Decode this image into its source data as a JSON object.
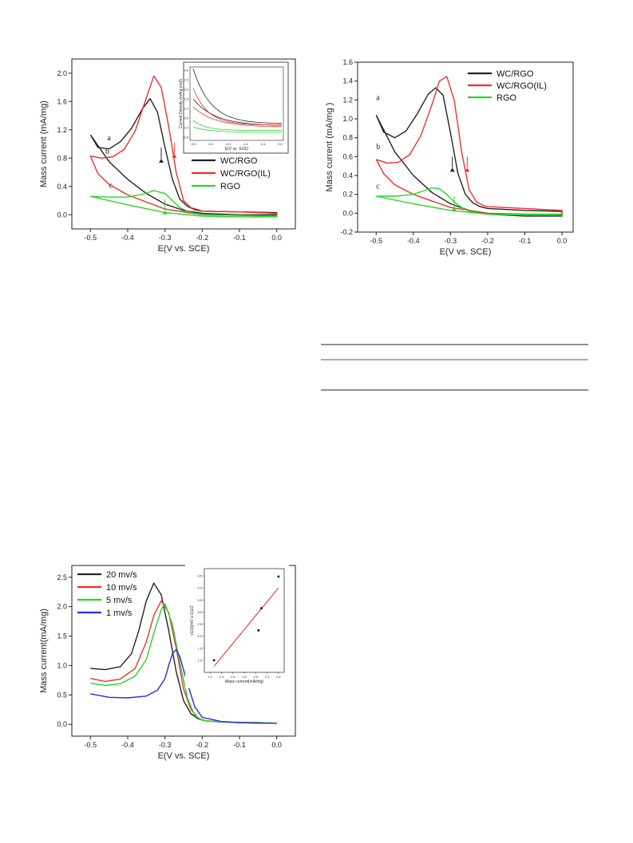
{
  "chart_data": [
    {
      "type": "line",
      "id": "fig1",
      "xlabel": "E(V vs. SCE)",
      "ylabel": "Mass current (mA/mg)",
      "xlim": [
        -0.55,
        0.05
      ],
      "ylim": [
        -0.2,
        2.2
      ],
      "xticks": [
        -0.5,
        -0.4,
        -0.3,
        -0.2,
        -0.1,
        0.0
      ],
      "xtick_labels": [
        "-0.5",
        "-0.4",
        "-0.3",
        "-0.2",
        "-0.1",
        "0.0"
      ],
      "yticks": [
        0.0,
        0.4,
        0.8,
        1.2,
        1.6,
        2.0
      ],
      "ytick_labels": [
        "0.0",
        "0.4",
        "0.8",
        "1.2",
        "1.6",
        "2.0"
      ],
      "legend_position": "right",
      "annotations": [
        "a",
        "b",
        "c"
      ],
      "series": [
        {
          "name": "WC/RGO",
          "color": "#222222",
          "x": [
            -0.5,
            -0.48,
            -0.45,
            -0.42,
            -0.39,
            -0.36,
            -0.34,
            -0.32,
            -0.3,
            -0.28,
            -0.26,
            -0.24,
            -0.22,
            -0.2,
            -0.1,
            0.0,
            0.0,
            -0.1,
            -0.2,
            -0.25,
            -0.3,
            -0.35,
            -0.4,
            -0.45,
            -0.5
          ],
          "y": [
            1.13,
            0.95,
            0.93,
            1.03,
            1.22,
            1.5,
            1.64,
            1.45,
            0.95,
            0.5,
            0.22,
            0.12,
            0.07,
            0.05,
            0.04,
            0.03,
            0.0,
            0.0,
            0.02,
            0.06,
            0.15,
            0.3,
            0.5,
            0.75,
            1.13
          ]
        },
        {
          "name": "WC/RGO(IL)",
          "color": "#e8322d",
          "x": [
            -0.5,
            -0.47,
            -0.44,
            -0.41,
            -0.38,
            -0.35,
            -0.33,
            -0.31,
            -0.29,
            -0.27,
            -0.25,
            -0.23,
            -0.21,
            -0.2,
            -0.1,
            0.0,
            0.0,
            -0.1,
            -0.2,
            -0.3,
            -0.4,
            -0.45,
            -0.48,
            -0.5
          ],
          "y": [
            0.83,
            0.8,
            0.82,
            0.92,
            1.18,
            1.65,
            1.96,
            1.8,
            1.25,
            0.6,
            0.2,
            0.1,
            0.07,
            0.05,
            0.04,
            0.02,
            -0.02,
            -0.01,
            0.0,
            0.08,
            0.28,
            0.43,
            0.58,
            0.83
          ]
        },
        {
          "name": "RGO",
          "color": "#2ad42a",
          "x": [
            -0.5,
            -0.45,
            -0.4,
            -0.36,
            -0.33,
            -0.3,
            -0.28,
            -0.26,
            -0.24,
            -0.22,
            -0.2,
            -0.1,
            0.0,
            0.0,
            -0.1,
            -0.2,
            -0.3,
            -0.4,
            -0.5
          ],
          "y": [
            0.26,
            0.25,
            0.25,
            0.29,
            0.34,
            0.3,
            0.2,
            0.1,
            0.05,
            0.02,
            0.0,
            -0.01,
            -0.02,
            -0.03,
            -0.03,
            -0.02,
            0.03,
            0.14,
            0.26
          ]
        }
      ],
      "inset": {
        "xlabel": "E(V vs. SCE)",
        "ylabel": "Current Density (mA/g cm2)",
        "xtick_labels": [
          "-0.5",
          "-0.4",
          "-0.3",
          "-0.2",
          "-0.1",
          "0.0"
        ],
        "ytick_labels": [
          "-0.5",
          "0.0",
          "0.5",
          "1.0",
          "1.5",
          "2.0",
          "2.5",
          "3.0"
        ]
      }
    },
    {
      "type": "line",
      "id": "fig2",
      "xlabel": "E(V vs. SCE)",
      "ylabel": "Mass current (mA/mg )",
      "xlim": [
        -0.55,
        0.03
      ],
      "ylim": [
        -0.2,
        1.6
      ],
      "xticks": [
        -0.5,
        -0.4,
        -0.3,
        -0.2,
        -0.1,
        0.0
      ],
      "xtick_labels": [
        "-0.5",
        "-0.4",
        "-0.3",
        "-0.2",
        "-0.1",
        "0.0"
      ],
      "yticks": [
        -0.2,
        0.0,
        0.2,
        0.4,
        0.6,
        0.8,
        1.0,
        1.2,
        1.4,
        1.6
      ],
      "ytick_labels": [
        "-0.2",
        "0.0",
        "0.2",
        "0.4",
        "0.6",
        "0.8",
        "1.0",
        "1.2",
        "1.4",
        "1.6"
      ],
      "legend_position": "top-right",
      "annotations": [
        "a",
        "b",
        "c"
      ],
      "series": [
        {
          "name": "WC/RGO",
          "color": "#222222",
          "x": [
            -0.5,
            -0.48,
            -0.45,
            -0.42,
            -0.39,
            -0.36,
            -0.34,
            -0.32,
            -0.3,
            -0.28,
            -0.26,
            -0.24,
            -0.22,
            -0.2,
            -0.1,
            0.0,
            0.0,
            -0.1,
            -0.2,
            -0.25,
            -0.3,
            -0.35,
            -0.4,
            -0.45,
            -0.5
          ],
          "y": [
            1.04,
            0.86,
            0.8,
            0.87,
            1.05,
            1.26,
            1.33,
            1.25,
            0.85,
            0.42,
            0.2,
            0.11,
            0.07,
            0.05,
            0.03,
            0.02,
            -0.03,
            -0.03,
            -0.01,
            0.03,
            0.1,
            0.22,
            0.4,
            0.65,
            1.04
          ]
        },
        {
          "name": "WC/RGO(IL)",
          "color": "#e8322d",
          "x": [
            -0.5,
            -0.47,
            -0.44,
            -0.41,
            -0.38,
            -0.35,
            -0.33,
            -0.31,
            -0.29,
            -0.27,
            -0.25,
            -0.23,
            -0.21,
            -0.2,
            -0.1,
            0.0,
            0.0,
            -0.1,
            -0.2,
            -0.3,
            -0.4,
            -0.45,
            -0.48,
            -0.5
          ],
          "y": [
            0.57,
            0.53,
            0.54,
            0.62,
            0.82,
            1.15,
            1.4,
            1.45,
            1.2,
            0.65,
            0.25,
            0.12,
            0.08,
            0.07,
            0.05,
            0.03,
            -0.02,
            -0.01,
            0.0,
            0.06,
            0.2,
            0.3,
            0.42,
            0.57
          ]
        },
        {
          "name": "RGO",
          "color": "#2ad42a",
          "x": [
            -0.5,
            -0.45,
            -0.4,
            -0.37,
            -0.35,
            -0.33,
            -0.31,
            -0.29,
            -0.27,
            -0.25,
            -0.22,
            -0.2,
            -0.1,
            0.0,
            0.0,
            -0.1,
            -0.2,
            -0.3,
            -0.4,
            -0.5
          ],
          "y": [
            0.18,
            0.18,
            0.2,
            0.24,
            0.27,
            0.26,
            0.2,
            0.12,
            0.06,
            0.02,
            0.0,
            -0.01,
            -0.01,
            -0.01,
            -0.02,
            -0.02,
            -0.01,
            0.03,
            0.1,
            0.18
          ]
        }
      ]
    },
    {
      "type": "line",
      "id": "fig3",
      "xlabel": "E(V vs. SCE)",
      "ylabel": "Mass current(mA/mg)",
      "xlim": [
        -0.55,
        0.05
      ],
      "ylim": [
        -0.2,
        2.7
      ],
      "xticks": [
        -0.5,
        -0.4,
        -0.3,
        -0.2,
        -0.1,
        0.0
      ],
      "xtick_labels": [
        "-0.5",
        "-0.4",
        "-0.3",
        "-0.2",
        "-0.1",
        "0.0"
      ],
      "yticks": [
        0.0,
        0.5,
        1.0,
        1.5,
        2.0,
        2.5
      ],
      "ytick_labels": [
        "0.0",
        "0.5",
        "1.0",
        "1.5",
        "2.0",
        "2.5"
      ],
      "legend_position": "top-left",
      "series": [
        {
          "name": "20 mv/s",
          "color": "#222222",
          "x": [
            -0.5,
            -0.46,
            -0.42,
            -0.39,
            -0.37,
            -0.35,
            -0.33,
            -0.31,
            -0.29,
            -0.27,
            -0.25,
            -0.23,
            -0.21,
            -0.19,
            -0.15,
            -0.1,
            -0.05,
            0.0
          ],
          "y": [
            0.95,
            0.93,
            0.98,
            1.2,
            1.6,
            2.1,
            2.4,
            2.2,
            1.6,
            0.9,
            0.4,
            0.18,
            0.09,
            0.06,
            0.04,
            0.03,
            0.03,
            0.02
          ]
        },
        {
          "name": "10 mv/s",
          "color": "#e8322d",
          "x": [
            -0.5,
            -0.46,
            -0.42,
            -0.38,
            -0.35,
            -0.33,
            -0.31,
            -0.29,
            -0.27,
            -0.25,
            -0.23,
            -0.21,
            -0.19,
            -0.15,
            -0.1,
            -0.05,
            0.0
          ],
          "y": [
            0.78,
            0.73,
            0.77,
            0.95,
            1.4,
            1.85,
            2.1,
            1.9,
            1.3,
            0.6,
            0.25,
            0.1,
            0.06,
            0.04,
            0.03,
            0.03,
            0.02
          ]
        },
        {
          "name": "5  mv/s",
          "color": "#2ad42a",
          "x": [
            -0.5,
            -0.46,
            -0.42,
            -0.38,
            -0.35,
            -0.33,
            -0.31,
            -0.3,
            -0.28,
            -0.26,
            -0.24,
            -0.22,
            -0.2,
            -0.15,
            -0.1,
            -0.05,
            0.0
          ],
          "y": [
            0.7,
            0.66,
            0.69,
            0.82,
            1.1,
            1.55,
            1.95,
            2.05,
            1.7,
            1.05,
            0.45,
            0.15,
            0.07,
            0.04,
            0.03,
            0.03,
            0.02
          ]
        },
        {
          "name": "1  mv/s",
          "color": "#2b2bdc",
          "x": [
            -0.5,
            -0.45,
            -0.4,
            -0.35,
            -0.32,
            -0.3,
            -0.29,
            -0.28,
            -0.27,
            -0.26,
            -0.24,
            -0.22,
            -0.2,
            -0.15,
            -0.1,
            -0.05,
            0.0
          ],
          "y": [
            0.52,
            0.46,
            0.45,
            0.48,
            0.58,
            0.78,
            1.0,
            1.2,
            1.27,
            1.15,
            0.7,
            0.3,
            0.12,
            0.05,
            0.03,
            0.02,
            0.02
          ]
        }
      ],
      "inset": {
        "type": "scatter",
        "xlabel": "Mass current(mA/mg)",
        "ylabel": "v1/2((mV s-1)1/2",
        "xlim": [
          1.1,
          2.5
        ],
        "ylim": [
          0.5,
          4.8
        ],
        "xticks": [
          1.2,
          1.4,
          1.6,
          1.8,
          2.0,
          2.2,
          2.4
        ],
        "xtick_labels": [
          "1.2",
          "1.4",
          "1.6",
          "1.8",
          "2.0",
          "2.2",
          "2.4"
        ],
        "yticks": [
          1.0,
          1.5,
          2.0,
          2.5,
          3.0,
          3.5,
          4.0,
          4.5
        ],
        "ytick_labels": [
          "1.0",
          "1.5",
          "2.0",
          "2.5",
          "3.0",
          "3.5",
          "4.0",
          "4.5"
        ],
        "points_x": [
          1.27,
          2.05,
          2.1,
          2.4
        ],
        "points_y": [
          1.0,
          2.24,
          3.16,
          4.47
        ],
        "fit_line_x": [
          1.27,
          2.4
        ],
        "fit_line_y": [
          0.75,
          4.0
        ],
        "fit_color": "#e8322d"
      }
    }
  ]
}
